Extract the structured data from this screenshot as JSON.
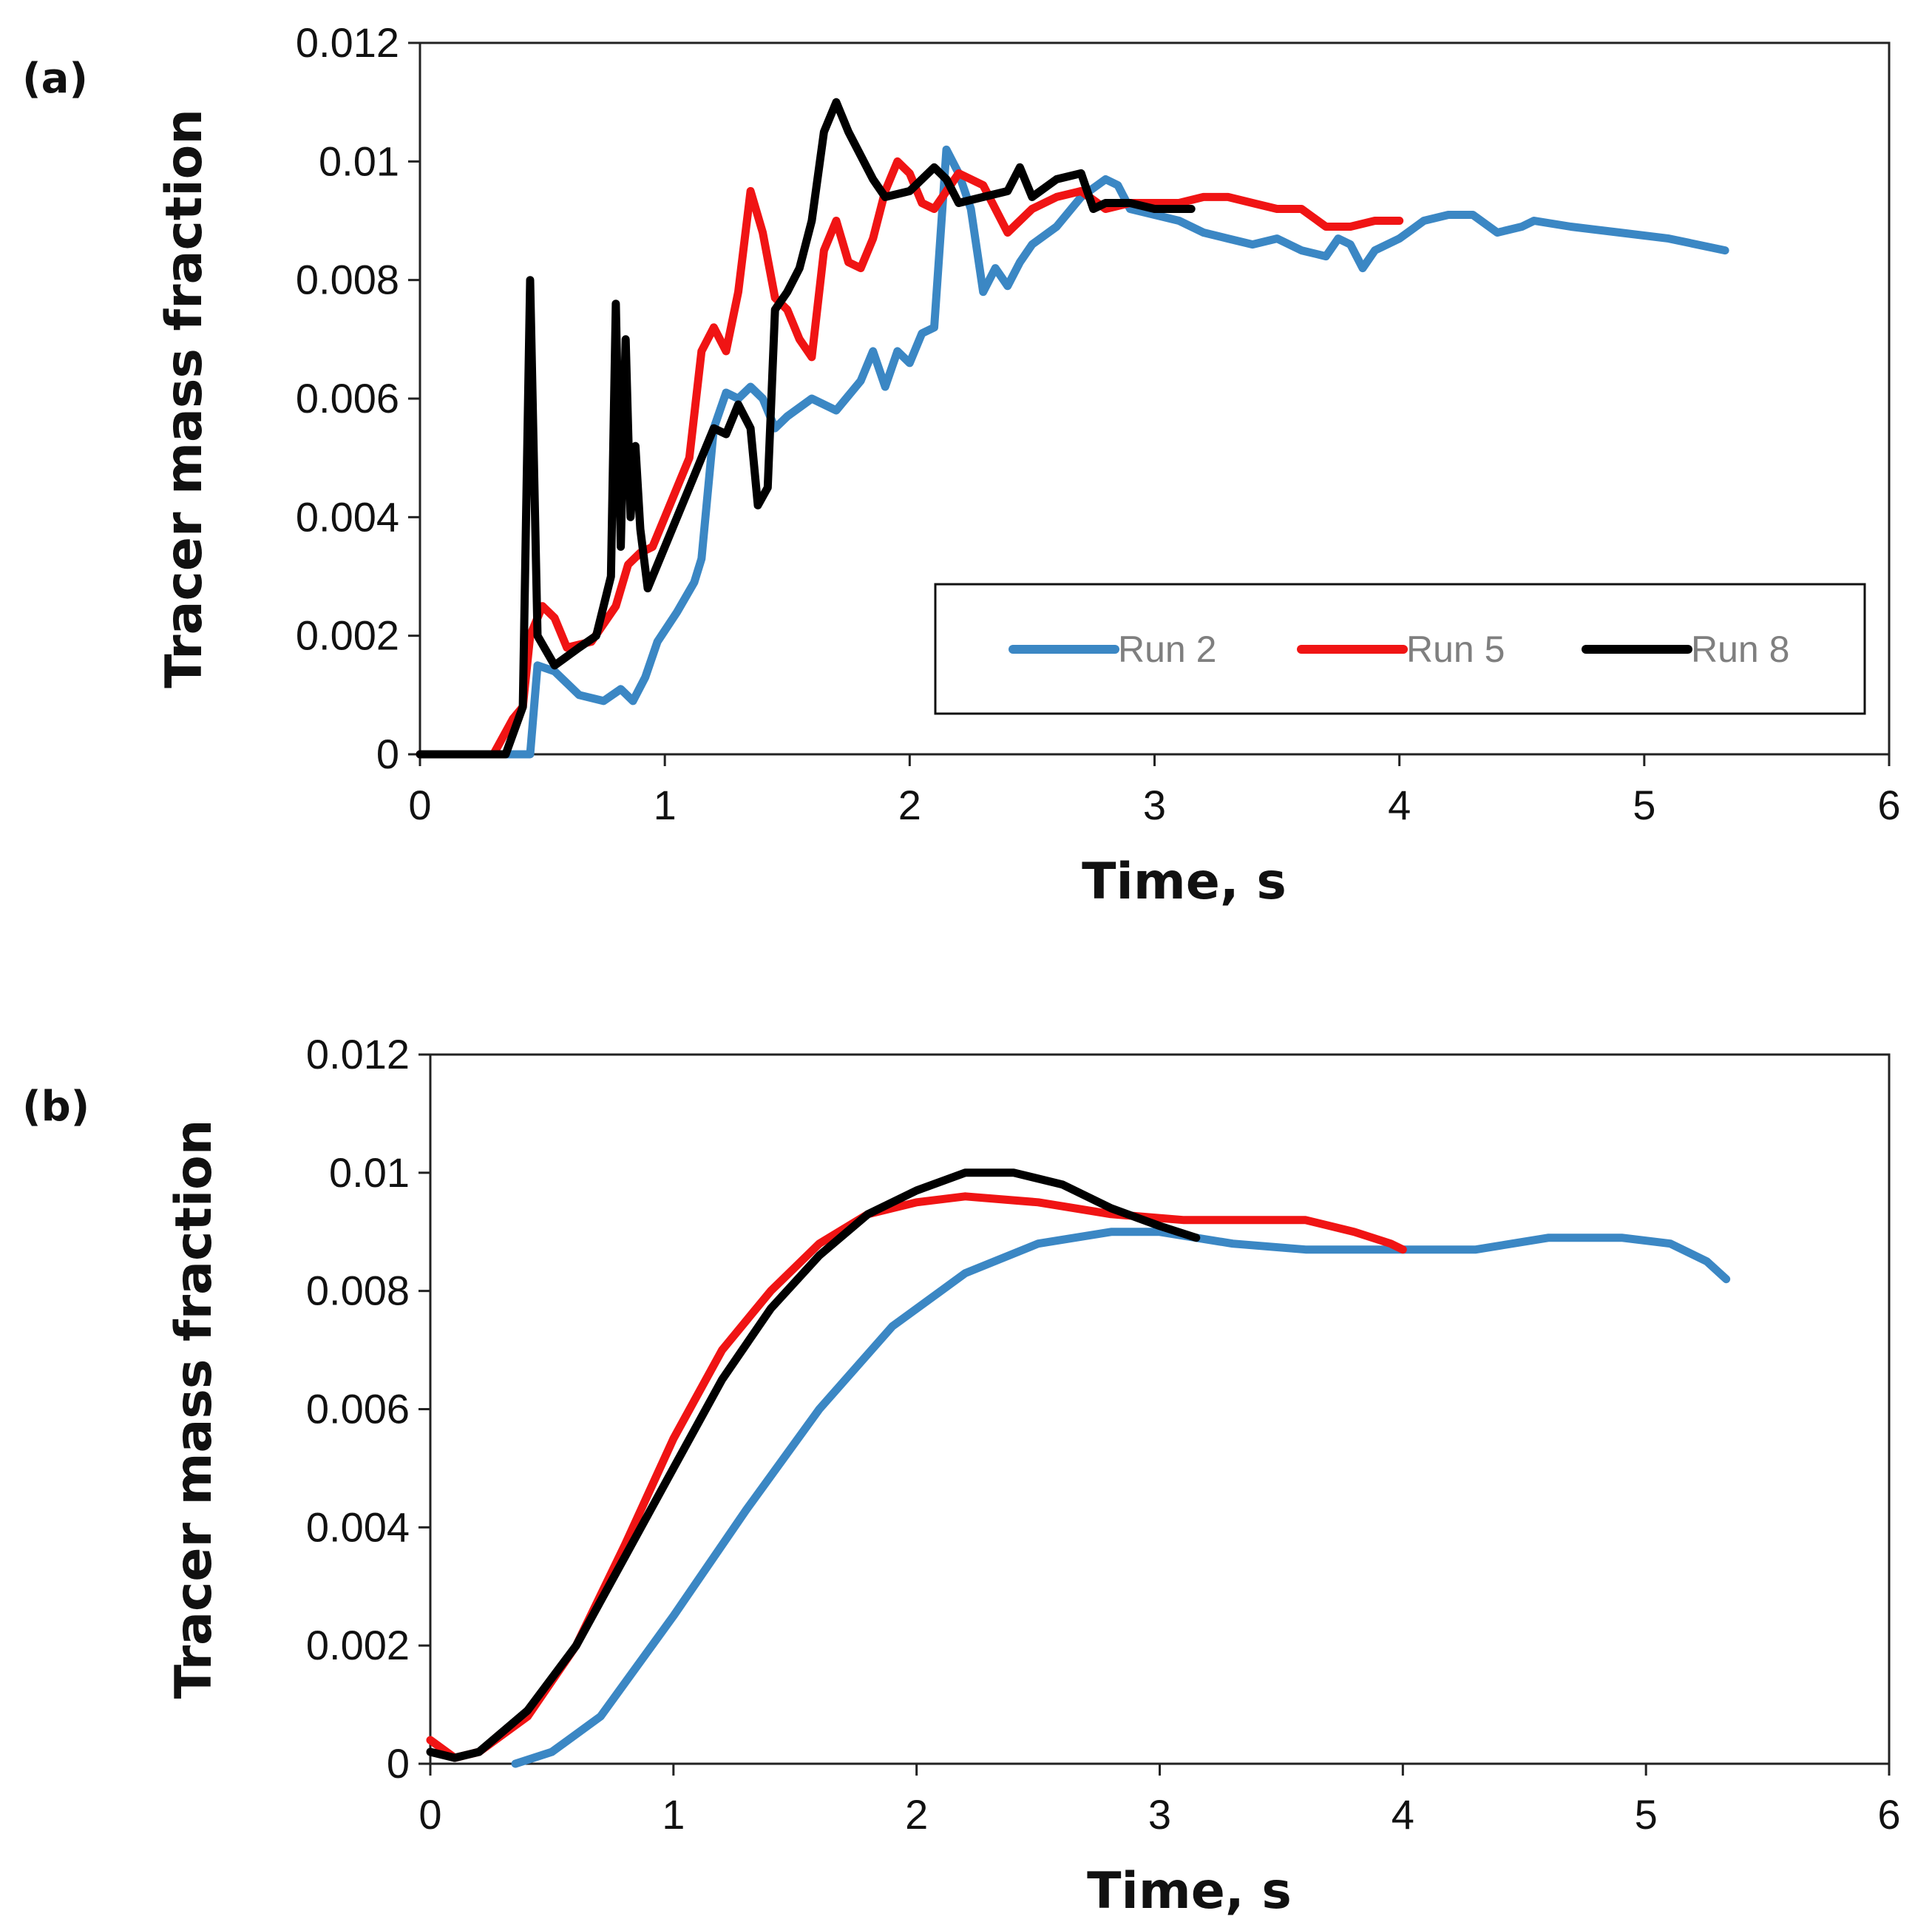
{
  "chart_data": [
    {
      "type": "line",
      "panel_label": "(a)",
      "xlabel": "Time, s",
      "ylabel": "Tracer  mass fraction",
      "xlim": [
        0,
        6
      ],
      "ylim": [
        0,
        0.012
      ],
      "xticks": [
        "0",
        "1",
        "2",
        "3",
        "4",
        "5",
        "6"
      ],
      "yticks": [
        "0",
        "0.002",
        "0.004",
        "0.006",
        "0.008",
        "0.01",
        "0.012"
      ],
      "legend": {
        "position": "lower-right",
        "entries": [
          "Run 2",
          "Run 5",
          "Run 8"
        ]
      },
      "series": [
        {
          "name": "Run 2",
          "color": "#3b87c4",
          "points": [
            [
              0,
              0
            ],
            [
              0.45,
              0
            ],
            [
              0.48,
              0.0015
            ],
            [
              0.55,
              0.0014
            ],
            [
              0.65,
              0.001
            ],
            [
              0.75,
              0.0009
            ],
            [
              0.82,
              0.0011
            ],
            [
              0.87,
              0.0009
            ],
            [
              0.92,
              0.0013
            ],
            [
              0.97,
              0.0019
            ],
            [
              1.05,
              0.0024
            ],
            [
              1.12,
              0.0029
            ],
            [
              1.15,
              0.0033
            ],
            [
              1.2,
              0.0055
            ],
            [
              1.25,
              0.0061
            ],
            [
              1.3,
              0.006
            ],
            [
              1.35,
              0.0062
            ],
            [
              1.4,
              0.006
            ],
            [
              1.45,
              0.0055
            ],
            [
              1.5,
              0.0057
            ],
            [
              1.6,
              0.006
            ],
            [
              1.7,
              0.0058
            ],
            [
              1.8,
              0.0063
            ],
            [
              1.85,
              0.0068
            ],
            [
              1.9,
              0.0062
            ],
            [
              1.95,
              0.0068
            ],
            [
              2.0,
              0.0066
            ],
            [
              2.05,
              0.0071
            ],
            [
              2.1,
              0.0072
            ],
            [
              2.15,
              0.0102
            ],
            [
              2.2,
              0.0098
            ],
            [
              2.25,
              0.0092
            ],
            [
              2.3,
              0.0078
            ],
            [
              2.35,
              0.0082
            ],
            [
              2.4,
              0.0079
            ],
            [
              2.45,
              0.0083
            ],
            [
              2.5,
              0.0086
            ],
            [
              2.6,
              0.0089
            ],
            [
              2.7,
              0.0094
            ],
            [
              2.8,
              0.0097
            ],
            [
              2.85,
              0.0096
            ],
            [
              2.9,
              0.0092
            ],
            [
              3.0,
              0.0091
            ],
            [
              3.1,
              0.009
            ],
            [
              3.2,
              0.0088
            ],
            [
              3.3,
              0.0087
            ],
            [
              3.4,
              0.0086
            ],
            [
              3.5,
              0.0087
            ],
            [
              3.6,
              0.0085
            ],
            [
              3.7,
              0.0084
            ],
            [
              3.75,
              0.0087
            ],
            [
              3.8,
              0.0086
            ],
            [
              3.85,
              0.0082
            ],
            [
              3.9,
              0.0085
            ],
            [
              4.0,
              0.0087
            ],
            [
              4.1,
              0.009
            ],
            [
              4.2,
              0.0091
            ],
            [
              4.3,
              0.0091
            ],
            [
              4.4,
              0.0088
            ],
            [
              4.5,
              0.0089
            ],
            [
              4.55,
              0.009
            ],
            [
              4.7,
              0.0089
            ],
            [
              4.9,
              0.0088
            ],
            [
              5.1,
              0.0087
            ],
            [
              5.33,
              0.0085
            ]
          ]
        },
        {
          "name": "Run 5",
          "color": "#f01414",
          "points": [
            [
              0,
              0
            ],
            [
              0.3,
              0
            ],
            [
              0.38,
              0.0006
            ],
            [
              0.42,
              0.0008
            ],
            [
              0.45,
              0.002
            ],
            [
              0.5,
              0.0025
            ],
            [
              0.55,
              0.0023
            ],
            [
              0.6,
              0.0018
            ],
            [
              0.7,
              0.0019
            ],
            [
              0.8,
              0.0025
            ],
            [
              0.85,
              0.0032
            ],
            [
              0.9,
              0.0034
            ],
            [
              0.95,
              0.0035
            ],
            [
              1.0,
              0.004
            ],
            [
              1.05,
              0.0045
            ],
            [
              1.1,
              0.005
            ],
            [
              1.15,
              0.0068
            ],
            [
              1.2,
              0.0072
            ],
            [
              1.25,
              0.0068
            ],
            [
              1.3,
              0.0078
            ],
            [
              1.35,
              0.0095
            ],
            [
              1.4,
              0.0088
            ],
            [
              1.45,
              0.0077
            ],
            [
              1.5,
              0.0075
            ],
            [
              1.55,
              0.007
            ],
            [
              1.6,
              0.0067
            ],
            [
              1.65,
              0.0085
            ],
            [
              1.7,
              0.009
            ],
            [
              1.75,
              0.0083
            ],
            [
              1.8,
              0.0082
            ],
            [
              1.85,
              0.0087
            ],
            [
              1.9,
              0.0095
            ],
            [
              1.95,
              0.01
            ],
            [
              2.0,
              0.0098
            ],
            [
              2.05,
              0.0093
            ],
            [
              2.1,
              0.0092
            ],
            [
              2.2,
              0.0098
            ],
            [
              2.3,
              0.0096
            ],
            [
              2.4,
              0.0088
            ],
            [
              2.5,
              0.0092
            ],
            [
              2.6,
              0.0094
            ],
            [
              2.7,
              0.0095
            ],
            [
              2.8,
              0.0092
            ],
            [
              2.9,
              0.0093
            ],
            [
              3.0,
              0.0093
            ],
            [
              3.1,
              0.0093
            ],
            [
              3.2,
              0.0094
            ],
            [
              3.3,
              0.0094
            ],
            [
              3.4,
              0.0093
            ],
            [
              3.5,
              0.0092
            ],
            [
              3.6,
              0.0092
            ],
            [
              3.7,
              0.0089
            ],
            [
              3.8,
              0.0089
            ],
            [
              3.9,
              0.009
            ],
            [
              4.0,
              0.009
            ]
          ]
        },
        {
          "name": "Run 8",
          "color": "#000000",
          "points": [
            [
              0,
              0
            ],
            [
              0.35,
              0
            ],
            [
              0.42,
              0.0008
            ],
            [
              0.45,
              0.008
            ],
            [
              0.48,
              0.002
            ],
            [
              0.55,
              0.0015
            ],
            [
              0.65,
              0.0018
            ],
            [
              0.72,
              0.002
            ],
            [
              0.78,
              0.003
            ],
            [
              0.8,
              0.0076
            ],
            [
              0.82,
              0.0035
            ],
            [
              0.84,
              0.007
            ],
            [
              0.86,
              0.004
            ],
            [
              0.88,
              0.0052
            ],
            [
              0.9,
              0.0038
            ],
            [
              0.93,
              0.0028
            ],
            [
              1.0,
              0.0035
            ],
            [
              1.1,
              0.0045
            ],
            [
              1.15,
              0.005
            ],
            [
              1.2,
              0.0055
            ],
            [
              1.25,
              0.0054
            ],
            [
              1.3,
              0.0059
            ],
            [
              1.35,
              0.0055
            ],
            [
              1.38,
              0.0042
            ],
            [
              1.42,
              0.0045
            ],
            [
              1.45,
              0.0075
            ],
            [
              1.5,
              0.0078
            ],
            [
              1.55,
              0.0082
            ],
            [
              1.6,
              0.009
            ],
            [
              1.65,
              0.0105
            ],
            [
              1.7,
              0.011
            ],
            [
              1.75,
              0.0105
            ],
            [
              1.8,
              0.0101
            ],
            [
              1.85,
              0.0097
            ],
            [
              1.9,
              0.0094
            ],
            [
              2.0,
              0.0095
            ],
            [
              2.1,
              0.0099
            ],
            [
              2.15,
              0.0097
            ],
            [
              2.2,
              0.0093
            ],
            [
              2.3,
              0.0094
            ],
            [
              2.4,
              0.0095
            ],
            [
              2.45,
              0.0099
            ],
            [
              2.5,
              0.0094
            ],
            [
              2.6,
              0.0097
            ],
            [
              2.7,
              0.0098
            ],
            [
              2.75,
              0.0092
            ],
            [
              2.8,
              0.0093
            ],
            [
              2.9,
              0.0093
            ],
            [
              3.0,
              0.0092
            ],
            [
              3.15,
              0.0092
            ]
          ]
        }
      ]
    },
    {
      "type": "line",
      "panel_label": "(b)",
      "xlabel": "Time, s",
      "ylabel": "Tracer  mass fraction",
      "xlim": [
        0,
        6
      ],
      "ylim": [
        0,
        0.012
      ],
      "xticks": [
        "0",
        "1",
        "2",
        "3",
        "4",
        "5",
        "6"
      ],
      "yticks": [
        "0",
        "0.002",
        "0.004",
        "0.006",
        "0.008",
        "0.01",
        "0.012"
      ],
      "series": [
        {
          "name": "Run 2",
          "color": "#3b87c4",
          "points": [
            [
              0.35,
              0
            ],
            [
              0.5,
              0.0002
            ],
            [
              0.7,
              0.0008
            ],
            [
              1.0,
              0.0025
            ],
            [
              1.3,
              0.0043
            ],
            [
              1.6,
              0.006
            ],
            [
              1.9,
              0.0074
            ],
            [
              2.2,
              0.0083
            ],
            [
              2.5,
              0.0088
            ],
            [
              2.8,
              0.009
            ],
            [
              3.0,
              0.009
            ],
            [
              3.3,
              0.0088
            ],
            [
              3.6,
              0.0087
            ],
            [
              4.0,
              0.0087
            ],
            [
              4.3,
              0.0087
            ],
            [
              4.6,
              0.0089
            ],
            [
              4.9,
              0.0089
            ],
            [
              5.1,
              0.0088
            ],
            [
              5.25,
              0.0085
            ],
            [
              5.33,
              0.0082
            ]
          ]
        },
        {
          "name": "Run 5",
          "color": "#f01414",
          "points": [
            [
              0,
              0.0004
            ],
            [
              0.1,
              0.0001
            ],
            [
              0.2,
              0.0002
            ],
            [
              0.4,
              0.0008
            ],
            [
              0.6,
              0.002
            ],
            [
              0.8,
              0.0037
            ],
            [
              1.0,
              0.0055
            ],
            [
              1.2,
              0.007
            ],
            [
              1.4,
              0.008
            ],
            [
              1.6,
              0.0088
            ],
            [
              1.8,
              0.0093
            ],
            [
              2.0,
              0.0095
            ],
            [
              2.2,
              0.0096
            ],
            [
              2.5,
              0.0095
            ],
            [
              2.8,
              0.0093
            ],
            [
              3.1,
              0.0092
            ],
            [
              3.4,
              0.0092
            ],
            [
              3.6,
              0.0092
            ],
            [
              3.8,
              0.009
            ],
            [
              3.95,
              0.0088
            ],
            [
              4.0,
              0.0087
            ]
          ]
        },
        {
          "name": "Run 8",
          "color": "#000000",
          "points": [
            [
              0,
              0.0002
            ],
            [
              0.1,
              0.0001
            ],
            [
              0.2,
              0.0002
            ],
            [
              0.4,
              0.0009
            ],
            [
              0.6,
              0.002
            ],
            [
              0.8,
              0.0035
            ],
            [
              1.0,
              0.005
            ],
            [
              1.2,
              0.0065
            ],
            [
              1.4,
              0.0077
            ],
            [
              1.6,
              0.0086
            ],
            [
              1.8,
              0.0093
            ],
            [
              2.0,
              0.0097
            ],
            [
              2.2,
              0.01
            ],
            [
              2.4,
              0.01
            ],
            [
              2.6,
              0.0098
            ],
            [
              2.8,
              0.0094
            ],
            [
              3.0,
              0.0091
            ],
            [
              3.15,
              0.0089
            ]
          ]
        }
      ]
    }
  ]
}
